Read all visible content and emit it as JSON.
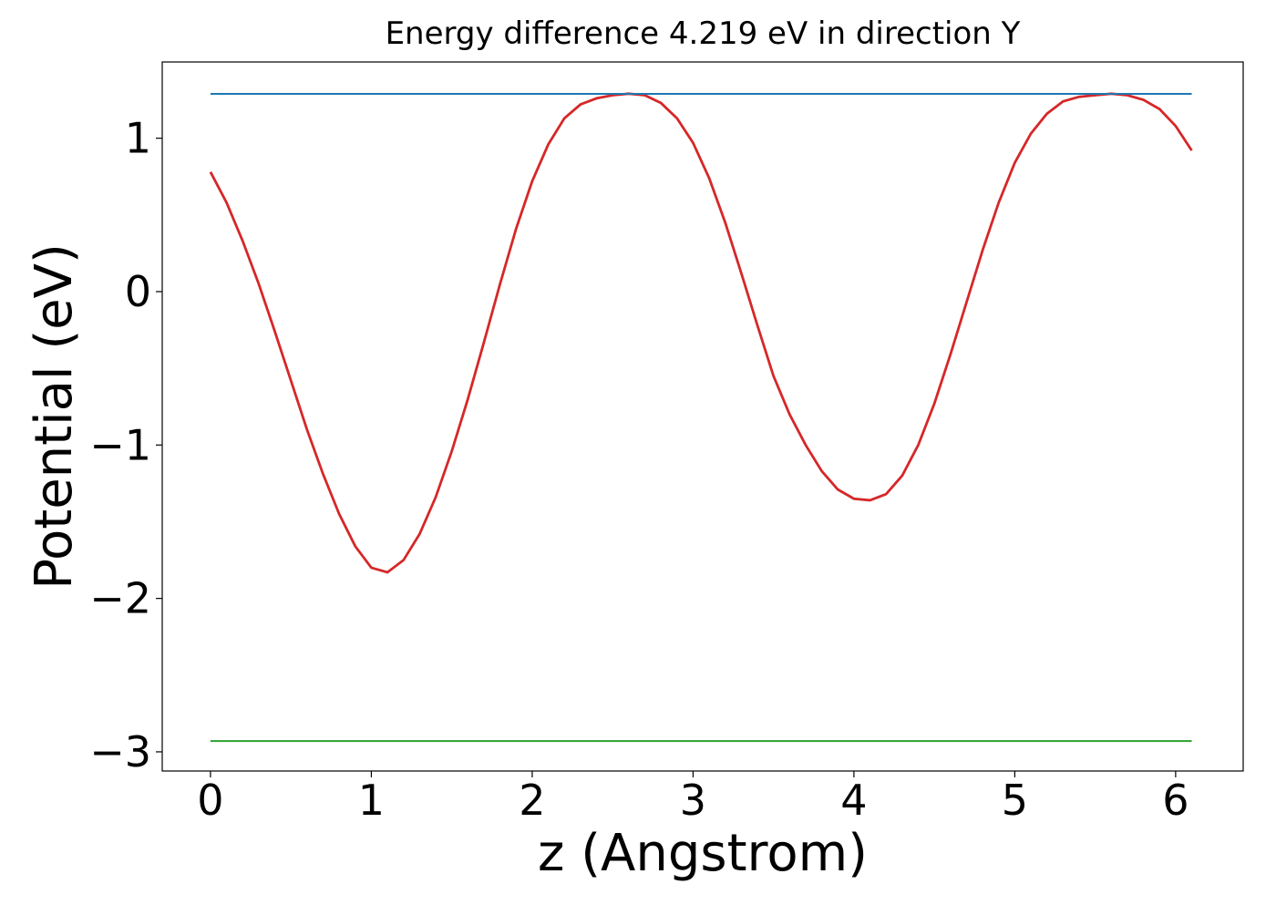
{
  "chart_data": {
    "type": "line",
    "title": "Energy difference 4.219 eV in direction Y",
    "xlabel": "z (Angstrom)",
    "ylabel": "Potential (eV)",
    "xlim": [
      -0.3,
      6.42
    ],
    "ylim": [
      -3.125,
      1.497
    ],
    "xticks": [
      0,
      1,
      2,
      3,
      4,
      5,
      6
    ],
    "yticks": [
      {
        "value": -3,
        "label": "−3"
      },
      {
        "value": -2,
        "label": "−2"
      },
      {
        "value": -1,
        "label": "−1"
      },
      0,
      1
    ],
    "series": [
      {
        "color": "#d62728",
        "x": [
          0,
          0.1,
          0.2,
          0.3,
          0.4,
          0.5,
          0.6,
          0.7,
          0.8,
          0.9,
          1.0,
          1.1,
          1.2,
          1.3,
          1.4,
          1.5,
          1.6,
          1.7,
          1.8,
          1.9,
          2.0,
          2.1,
          2.2,
          2.3,
          2.4,
          2.5,
          2.6,
          2.7,
          2.8,
          2.9,
          3.0,
          3.1,
          3.2,
          3.3,
          3.4,
          3.5,
          3.6,
          3.7,
          3.8,
          3.9,
          4.0,
          4.1,
          4.2,
          4.3,
          4.4,
          4.5,
          4.6,
          4.7,
          4.8,
          4.9,
          5.0,
          5.1,
          5.2,
          5.3,
          5.4,
          5.5,
          5.6,
          5.7,
          5.8,
          5.9,
          6.0,
          6.1
        ],
        "values": [
          0.78,
          0.58,
          0.33,
          0.05,
          -0.26,
          -0.58,
          -0.9,
          -1.19,
          -1.45,
          -1.66,
          -1.8,
          -1.83,
          -1.75,
          -1.58,
          -1.34,
          -1.04,
          -0.7,
          -0.33,
          0.05,
          0.41,
          0.72,
          0.96,
          1.13,
          1.22,
          1.26,
          1.28,
          1.29,
          1.28,
          1.23,
          1.13,
          0.97,
          0.74,
          0.45,
          0.12,
          -0.22,
          -0.55,
          -0.8,
          -1.0,
          -1.17,
          -1.29,
          -1.35,
          -1.36,
          -1.32,
          -1.2,
          -1.0,
          -0.73,
          -0.41,
          -0.07,
          0.27,
          0.58,
          0.84,
          1.03,
          1.16,
          1.24,
          1.27,
          1.28,
          1.29,
          1.28,
          1.25,
          1.19,
          1.08,
          0.92
        ]
      },
      {
        "color": "#1f77b4",
        "x": [
          0,
          6.1
        ],
        "values": [
          1.289,
          1.289
        ]
      },
      {
        "color": "#2ca02c",
        "x": [
          0,
          6.1
        ],
        "values": [
          -2.93,
          -2.93
        ]
      }
    ]
  }
}
